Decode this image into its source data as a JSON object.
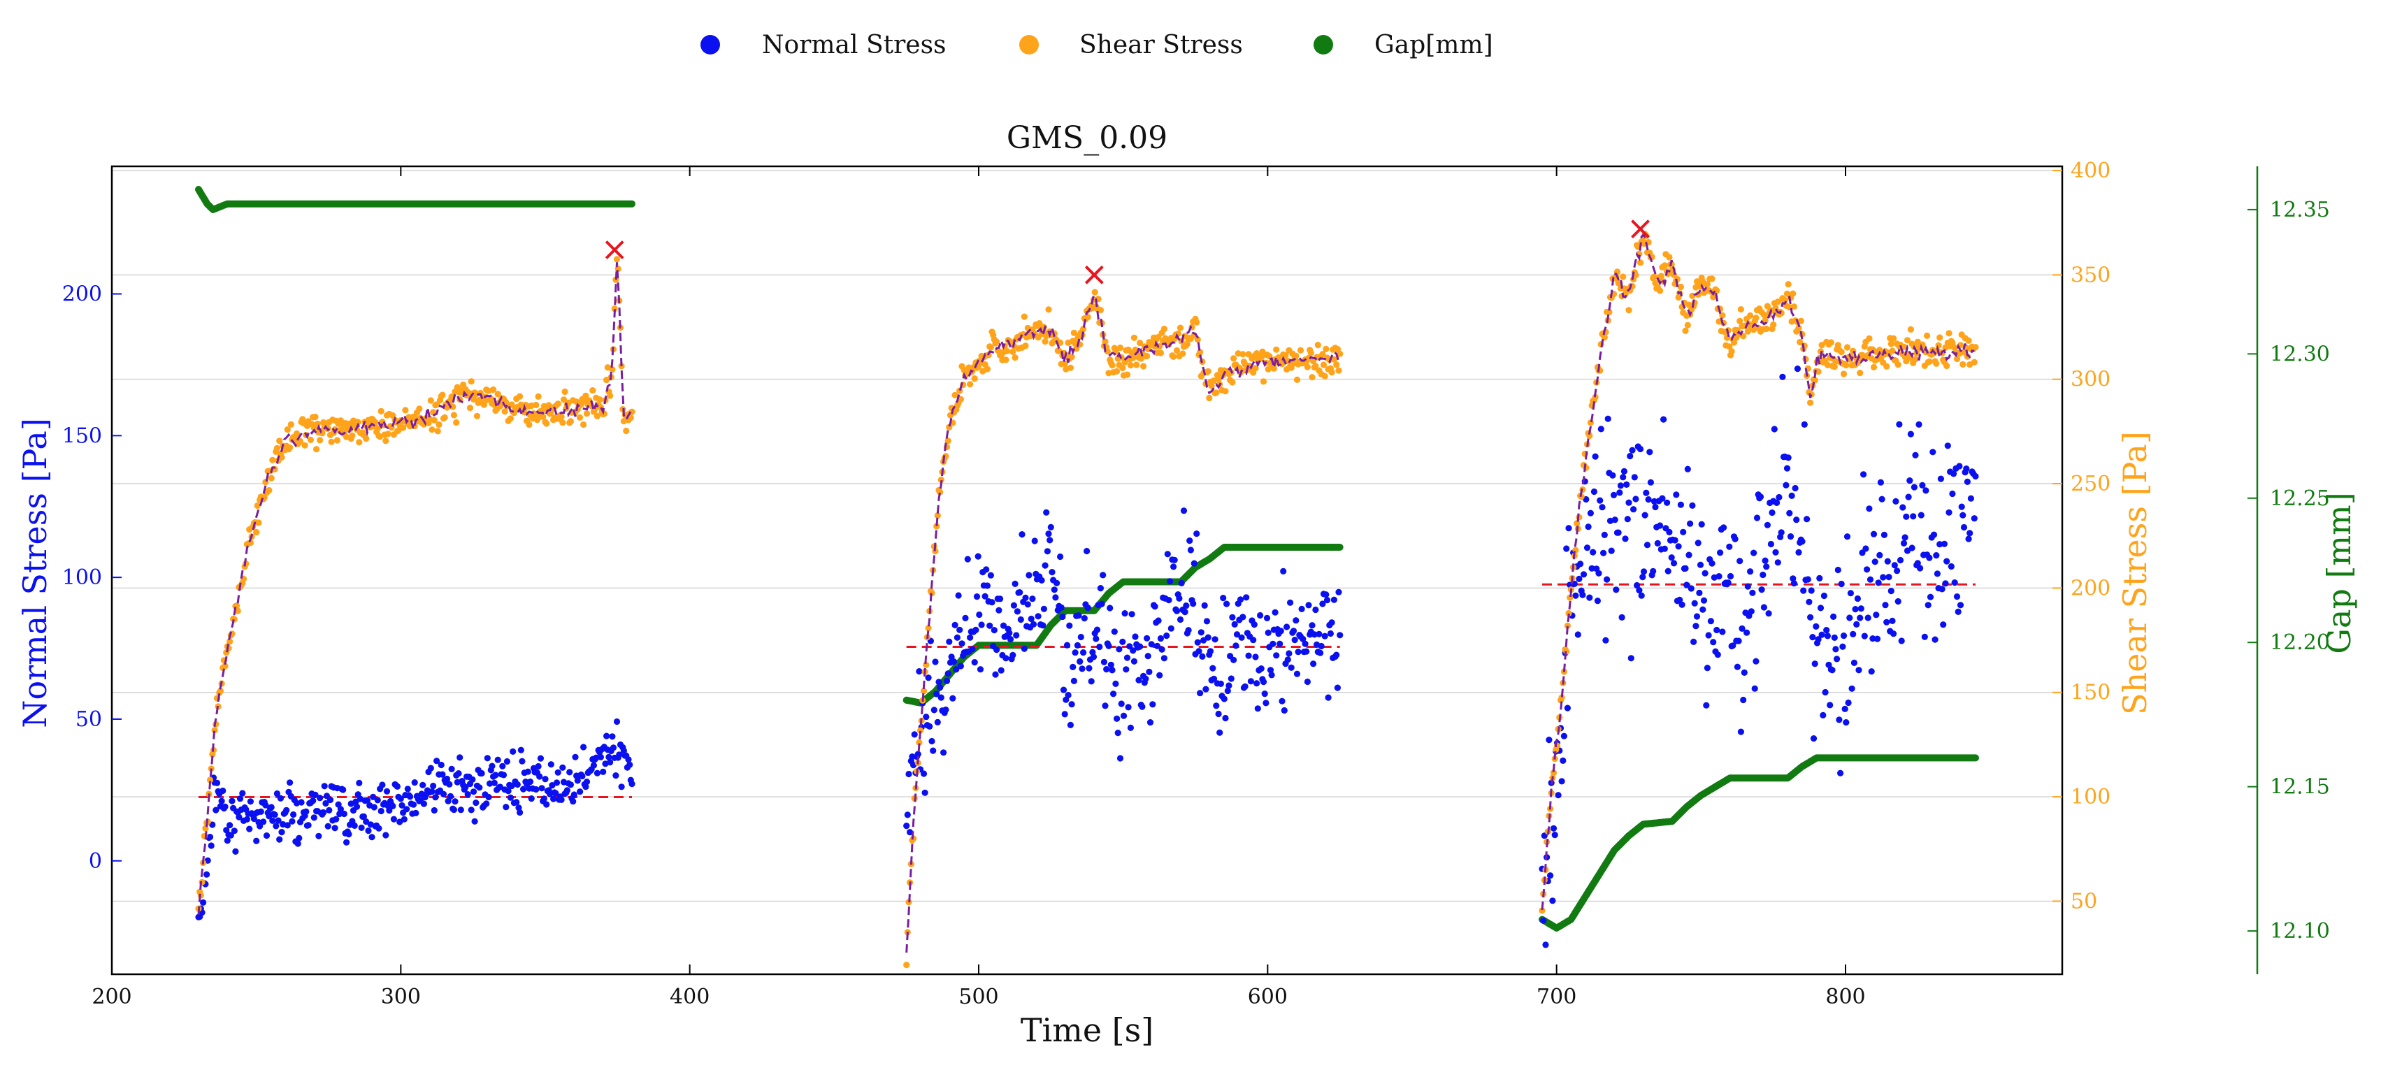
{
  "chart_data": {
    "type": "scatter",
    "title": "GMS_0.09",
    "xlabel": "Time [s]",
    "ylabel_left": "Normal Stress [Pa]",
    "ylabel_right": "Shear Stress [Pa]",
    "ylabel_far_right": "Gap [mm]",
    "xlim": [
      200,
      875
    ],
    "ylim_left": [
      -40,
      245
    ],
    "ylim_right": [
      15,
      402
    ],
    "ylim_far_right": [
      12.085,
      12.365
    ],
    "x_ticks": [
      200,
      300,
      400,
      500,
      600,
      700,
      800
    ],
    "y_ticks_left": [
      0,
      50,
      100,
      150,
      200
    ],
    "y_ticks_right": [
      50,
      100,
      150,
      200,
      250,
      300,
      350,
      400
    ],
    "y_ticks_far_right": [
      12.1,
      12.15,
      12.2,
      12.25,
      12.3,
      12.35
    ],
    "grid": "horizontal",
    "legend_position": "top-center",
    "colors": {
      "normal": "#0a10f0",
      "shear": "#ffa31a",
      "gap": "#117a11",
      "reference": "#e8141e",
      "fit": "#7a1ea0"
    },
    "legend": [
      {
        "label": "Normal Stress",
        "color": "#0a10f0"
      },
      {
        "label": "Shear Stress",
        "color": "#ffa31a"
      },
      {
        "label": "Gap[mm]",
        "color": "#117a11"
      }
    ],
    "segments": [
      {
        "t_start": 230,
        "t_end": 380,
        "normal_mean": 22.5,
        "normal_trend": [
          [
            230,
            -22
          ],
          [
            233,
            0
          ],
          [
            236,
            25
          ],
          [
            240,
            15
          ],
          [
            260,
            18
          ],
          [
            290,
            18
          ],
          [
            320,
            26
          ],
          [
            340,
            28
          ],
          [
            360,
            28
          ],
          [
            375,
            40
          ],
          [
            380,
            28
          ]
        ],
        "normal_spread": 7,
        "shear_trend": [
          [
            230,
            46
          ],
          [
            233,
            90
          ],
          [
            236,
            140
          ],
          [
            240,
            170
          ],
          [
            245,
            205
          ],
          [
            250,
            235
          ],
          [
            255,
            255
          ],
          [
            260,
            270
          ],
          [
            270,
            275
          ],
          [
            290,
            277
          ],
          [
            310,
            282
          ],
          [
            320,
            292
          ],
          [
            330,
            292
          ],
          [
            340,
            284
          ],
          [
            360,
            286
          ],
          [
            370,
            287
          ],
          [
            373,
            300
          ],
          [
            375,
            362
          ],
          [
            377,
            280
          ],
          [
            380,
            285
          ]
        ],
        "peak": {
          "t": 374,
          "shear": 362
        },
        "gap_trend": [
          [
            230,
            12.357
          ],
          [
            233,
            12.352
          ],
          [
            235,
            12.35
          ],
          [
            240,
            12.352
          ],
          [
            380,
            12.352
          ]
        ]
      },
      {
        "t_start": 475,
        "t_end": 625,
        "normal_mean": 75.5,
        "normal_trend": [
          [
            475,
            20
          ],
          [
            480,
            45
          ],
          [
            485,
            55
          ],
          [
            490,
            70
          ],
          [
            495,
            80
          ],
          [
            500,
            90
          ],
          [
            505,
            85
          ],
          [
            510,
            80
          ],
          [
            515,
            90
          ],
          [
            520,
            100
          ],
          [
            525,
            110
          ],
          [
            530,
            70
          ],
          [
            540,
            85
          ],
          [
            550,
            60
          ],
          [
            560,
            75
          ],
          [
            570,
            100
          ],
          [
            575,
            90
          ],
          [
            580,
            65
          ],
          [
            590,
            75
          ],
          [
            600,
            78
          ],
          [
            610,
            80
          ],
          [
            625,
            85
          ]
        ],
        "normal_spread": 18,
        "shear_trend": [
          [
            475,
            25
          ],
          [
            478,
            100
          ],
          [
            482,
            170
          ],
          [
            486,
            240
          ],
          [
            490,
            280
          ],
          [
            495,
            300
          ],
          [
            500,
            308
          ],
          [
            505,
            315
          ],
          [
            515,
            320
          ],
          [
            525,
            325
          ],
          [
            530,
            308
          ],
          [
            535,
            320
          ],
          [
            540,
            340
          ],
          [
            545,
            310
          ],
          [
            550,
            310
          ],
          [
            560,
            315
          ],
          [
            570,
            318
          ],
          [
            575,
            325
          ],
          [
            578,
            303
          ],
          [
            580,
            292
          ],
          [
            585,
            303
          ],
          [
            600,
            308
          ],
          [
            625,
            310
          ]
        ],
        "peak": {
          "t": 540,
          "shear": 350
        },
        "gap_trend": [
          [
            475,
            12.18
          ],
          [
            480,
            12.179
          ],
          [
            485,
            12.183
          ],
          [
            490,
            12.189
          ],
          [
            495,
            12.195
          ],
          [
            500,
            12.199
          ],
          [
            520,
            12.199
          ],
          [
            525,
            12.206
          ],
          [
            530,
            12.211
          ],
          [
            540,
            12.211
          ],
          [
            545,
            12.217
          ],
          [
            550,
            12.221
          ],
          [
            570,
            12.221
          ],
          [
            575,
            12.226
          ],
          [
            580,
            12.229
          ],
          [
            585,
            12.233
          ],
          [
            625,
            12.233
          ]
        ]
      },
      {
        "t_start": 695,
        "t_end": 845,
        "normal_mean": 97.5,
        "normal_trend": [
          [
            695,
            10
          ],
          [
            700,
            35
          ],
          [
            705,
            80
          ],
          [
            710,
            110
          ],
          [
            720,
            120
          ],
          [
            730,
            125
          ],
          [
            740,
            115
          ],
          [
            745,
            105
          ],
          [
            750,
            95
          ],
          [
            760,
            90
          ],
          [
            765,
            80
          ],
          [
            770,
            100
          ],
          [
            780,
            135
          ],
          [
            785,
            110
          ],
          [
            790,
            75
          ],
          [
            800,
            80
          ],
          [
            805,
            95
          ],
          [
            810,
            100
          ],
          [
            820,
            110
          ],
          [
            830,
            115
          ],
          [
            840,
            120
          ],
          [
            845,
            125
          ]
        ],
        "normal_spread": 28,
        "shear_trend": [
          [
            695,
            45
          ],
          [
            698,
            100
          ],
          [
            702,
            150
          ],
          [
            705,
            200
          ],
          [
            708,
            240
          ],
          [
            712,
            280
          ],
          [
            715,
            310
          ],
          [
            720,
            350
          ],
          [
            725,
            340
          ],
          [
            730,
            370
          ],
          [
            735,
            345
          ],
          [
            740,
            355
          ],
          [
            745,
            330
          ],
          [
            750,
            345
          ],
          [
            755,
            340
          ],
          [
            760,
            318
          ],
          [
            765,
            325
          ],
          [
            775,
            330
          ],
          [
            780,
            340
          ],
          [
            785,
            320
          ],
          [
            788,
            290
          ],
          [
            790,
            310
          ],
          [
            800,
            310
          ],
          [
            820,
            313
          ],
          [
            845,
            313
          ]
        ],
        "peak": {
          "t": 729,
          "shear": 372
        },
        "gap_trend": [
          [
            695,
            12.104
          ],
          [
            700,
            12.101
          ],
          [
            705,
            12.104
          ],
          [
            710,
            12.112
          ],
          [
            715,
            12.12
          ],
          [
            720,
            12.128
          ],
          [
            725,
            12.133
          ],
          [
            730,
            12.137
          ],
          [
            740,
            12.138
          ],
          [
            745,
            12.143
          ],
          [
            750,
            12.147
          ],
          [
            755,
            12.15
          ],
          [
            760,
            12.153
          ],
          [
            780,
            12.153
          ],
          [
            785,
            12.157
          ],
          [
            790,
            12.16
          ],
          [
            845,
            12.16
          ]
        ]
      }
    ]
  }
}
